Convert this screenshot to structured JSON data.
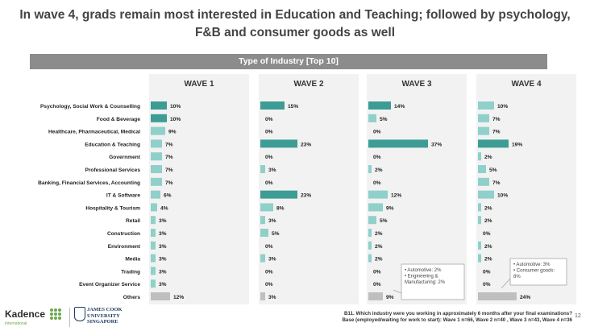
{
  "title_line1": "In wave 4, grads remain most interested in Education and Teaching; followed by psychology,",
  "title_line2": "F&B and consumer goods as well",
  "type_header": "Type of Industry [Top 10]",
  "chart_data": {
    "type": "bar",
    "categories": [
      "Psychology, Social Work & Counselling",
      "Food & Beverage",
      "Healthcare, Pharmaceutical, Medical",
      "Education & Teaching",
      "Government",
      "Professional Services",
      "Banking, Financial Services, Accounting",
      "IT & Software",
      "Hospitality & Tourism",
      "Retail",
      "Construction",
      "Environment",
      "Media",
      "Trading",
      "Event Organizer Service",
      "Others"
    ],
    "unit": "%",
    "series": [
      {
        "name": "WAVE 1",
        "values": [
          10,
          10,
          9,
          7,
          7,
          7,
          7,
          6,
          4,
          3,
          3,
          3,
          3,
          3,
          3,
          12
        ]
      },
      {
        "name": "WAVE 2",
        "values": [
          15,
          0,
          0,
          23,
          0,
          3,
          0,
          23,
          8,
          3,
          5,
          0,
          3,
          0,
          0,
          3
        ]
      },
      {
        "name": "WAVE 3",
        "values": [
          14,
          5,
          0,
          37,
          0,
          2,
          0,
          12,
          9,
          5,
          2,
          2,
          2,
          0,
          0,
          9
        ]
      },
      {
        "name": "WAVE 4",
        "values": [
          10,
          7,
          7,
          19,
          2,
          5,
          7,
          10,
          2,
          2,
          0,
          2,
          2,
          0,
          0,
          24
        ]
      }
    ],
    "annotations": {
      "WAVE 3": "• Automotive: 2%\n• Engineering & Manufacturing: 2%",
      "WAVE 4": "• Automotive: 3%\n• Consumer goods: 8%"
    }
  },
  "colors": {
    "top_highlight": "#3d9c94",
    "other_bar": "#8fd0ca",
    "others_bar": "#bfbfbf",
    "panel_bg": "#f2f2f2",
    "header_bg": "#8c8c8c"
  },
  "footnote_line1": "B11. Which industry were you working in approximately 6 months after your final examinations?",
  "footnote_line2": "Base (employed/waiting for work to start): Wave 1 n=66, Wave 2 n=40 , Wave 3 n=43, Wave 4 n=36",
  "page_number": "12",
  "logo_kadence": "Kadence",
  "logo_kadence_sub": "International",
  "logo_jcu_line1": "JAMES COOK",
  "logo_jcu_line2": "UNIVERSITY",
  "logo_jcu_line3": "SINGAPORE"
}
